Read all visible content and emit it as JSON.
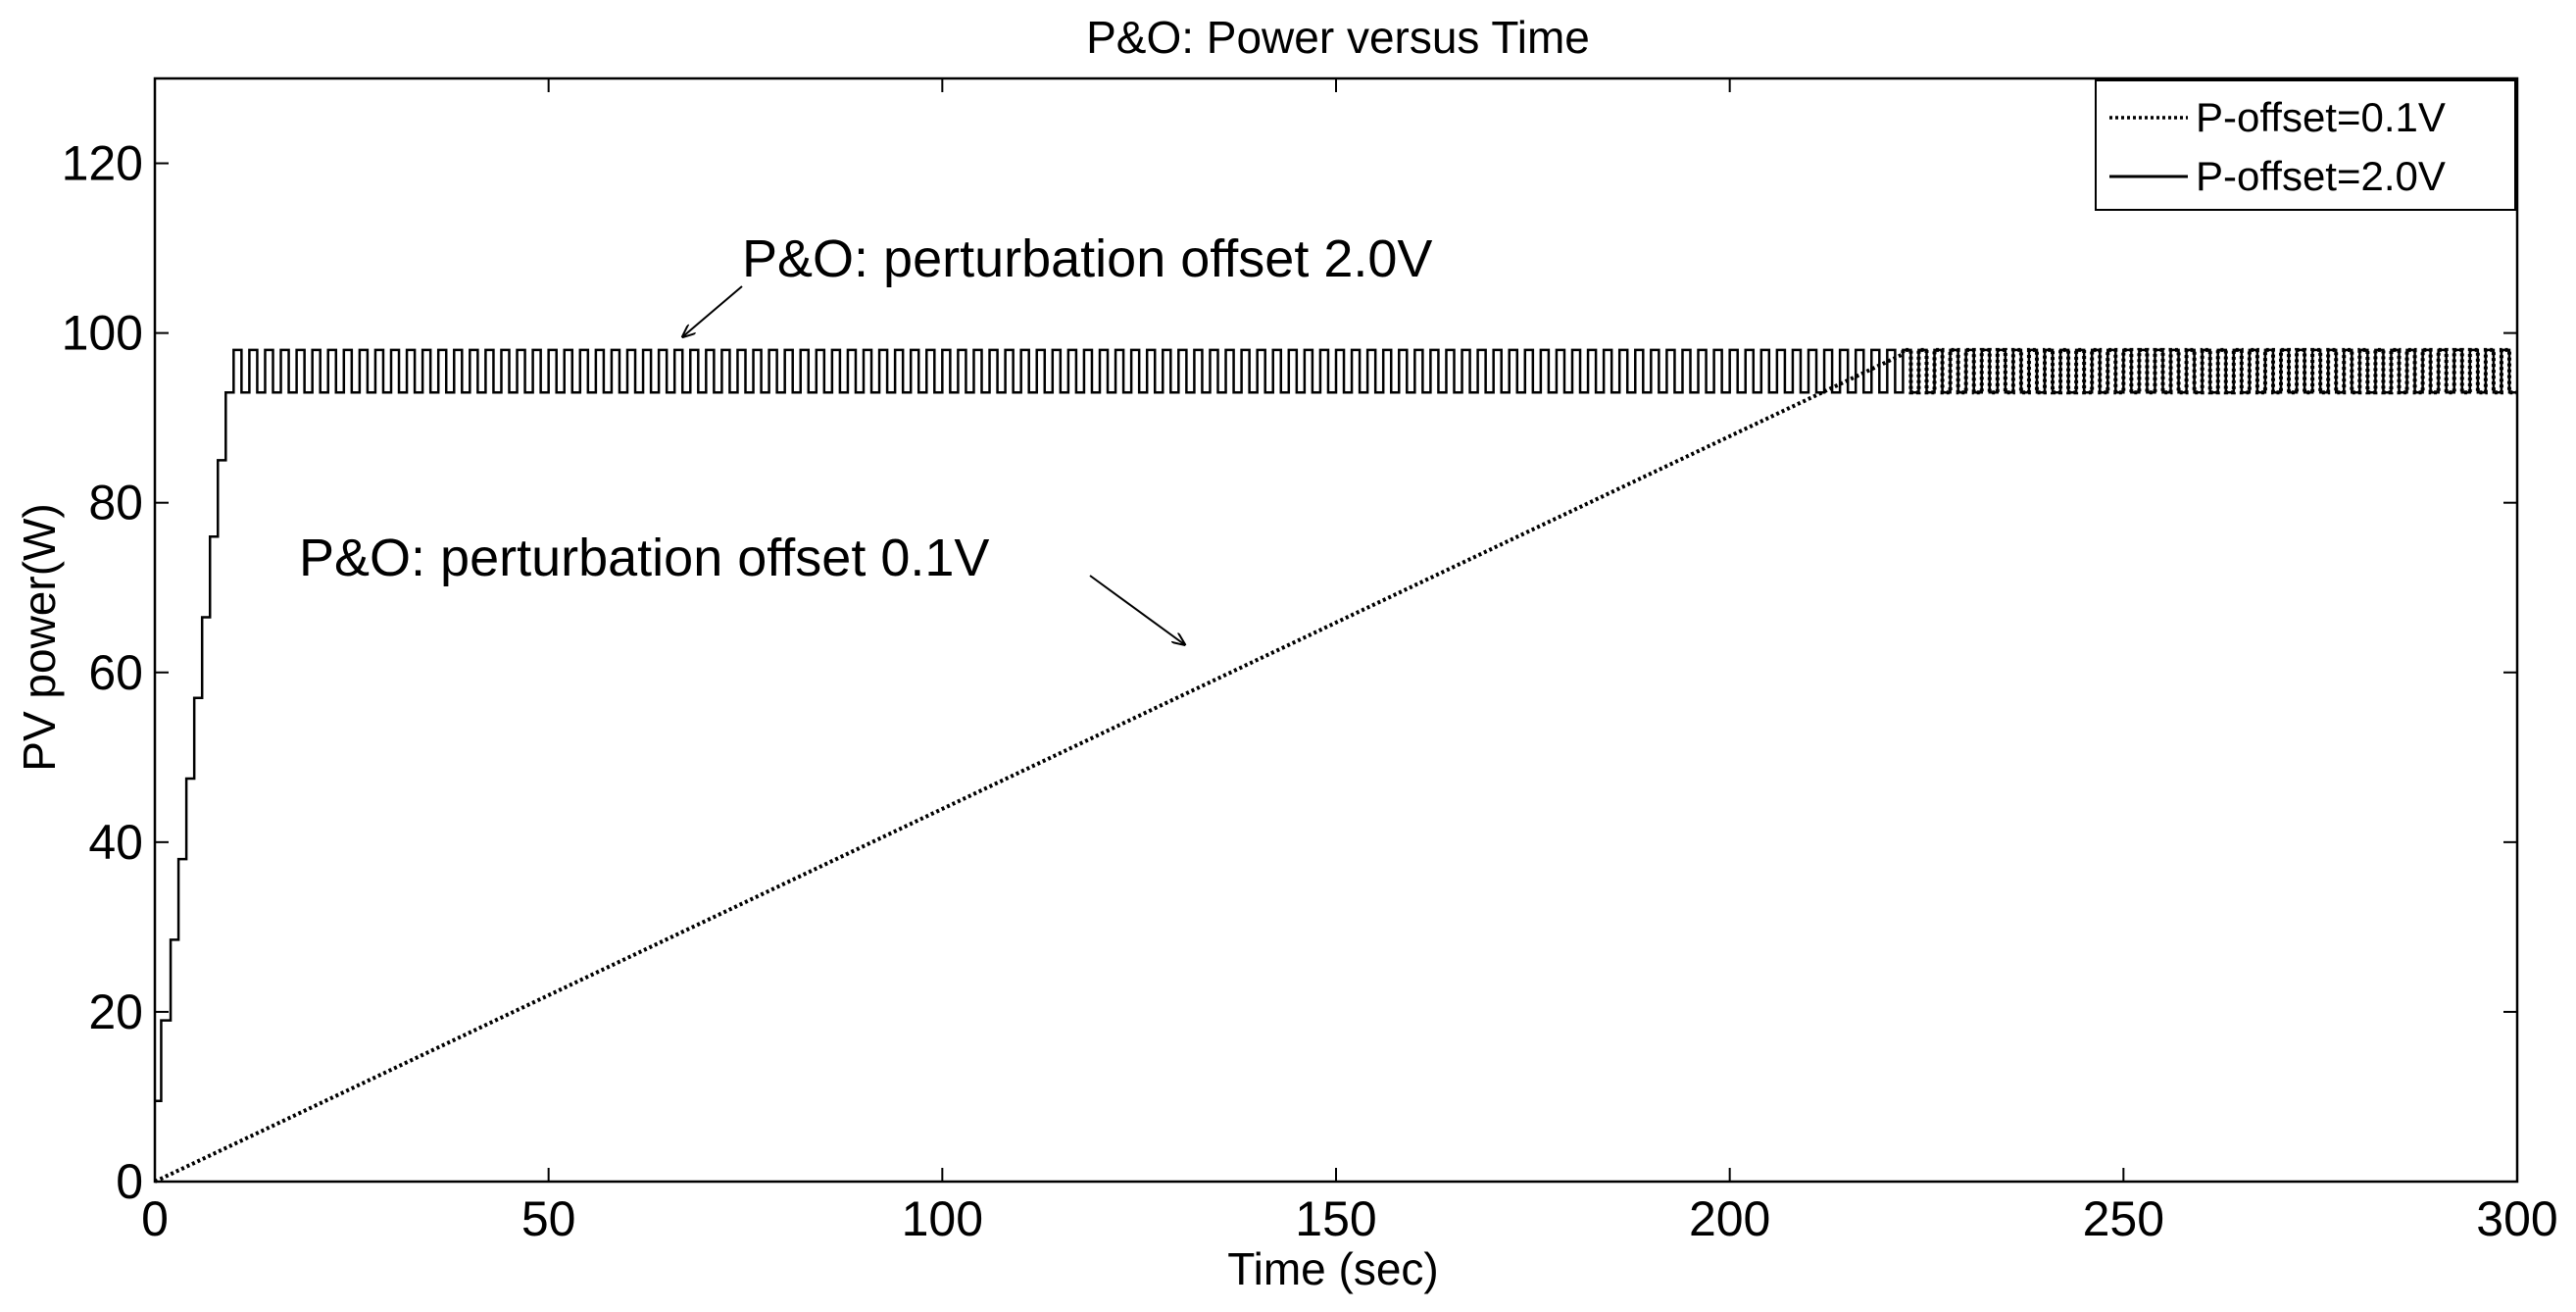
{
  "chart_data": {
    "type": "line",
    "title": "P&O: Power versus Time",
    "xlabel": "Time (sec)",
    "ylabel": "PV power(W)",
    "xlim": [
      0,
      300
    ],
    "ylim": [
      0,
      130
    ],
    "grid": false,
    "xticks": [
      0,
      50,
      100,
      150,
      200,
      250,
      300
    ],
    "yticks": [
      0,
      20,
      40,
      60,
      80,
      100,
      120
    ],
    "xtick_labels": [
      "0",
      "50",
      "100",
      "150",
      "200",
      "250",
      "300"
    ],
    "ytick_labels": [
      "0",
      "20",
      "40",
      "60",
      "80",
      "100",
      "120"
    ],
    "legend": {
      "position": "top-right",
      "entries": [
        "P-offset=0.1V",
        "P-offset=2.0V"
      ]
    },
    "series": [
      {
        "name": "P-offset=0.1V",
        "style": "dotted",
        "description": "slow linear ramp then oscillation",
        "ramp_start": [
          0,
          0
        ],
        "ramp_end": [
          222,
          97.5
        ],
        "oscillation_low": 93,
        "oscillation_high": 98,
        "oscillation_period": 2
      },
      {
        "name": "P-offset=2.0V",
        "style": "solid",
        "description": "fast staircase then oscillation",
        "steps_x": [
          0,
          0.8,
          2,
          3,
          4,
          5,
          6,
          7,
          8,
          9
        ],
        "steps_y": [
          9.5,
          19,
          28.5,
          38,
          47.5,
          57,
          66.5,
          76,
          85,
          93
        ],
        "oscillation_start": 10,
        "oscillation_low": 93,
        "oscillation_high": 98,
        "oscillation_period": 2
      }
    ],
    "annotations": [
      {
        "text": "P&O: perturbation offset 2.0V",
        "points_to": [
          67,
          98
        ]
      },
      {
        "text": "P&O: perturbation offset 0.1V",
        "points_to": [
          132,
          63
        ]
      }
    ]
  }
}
